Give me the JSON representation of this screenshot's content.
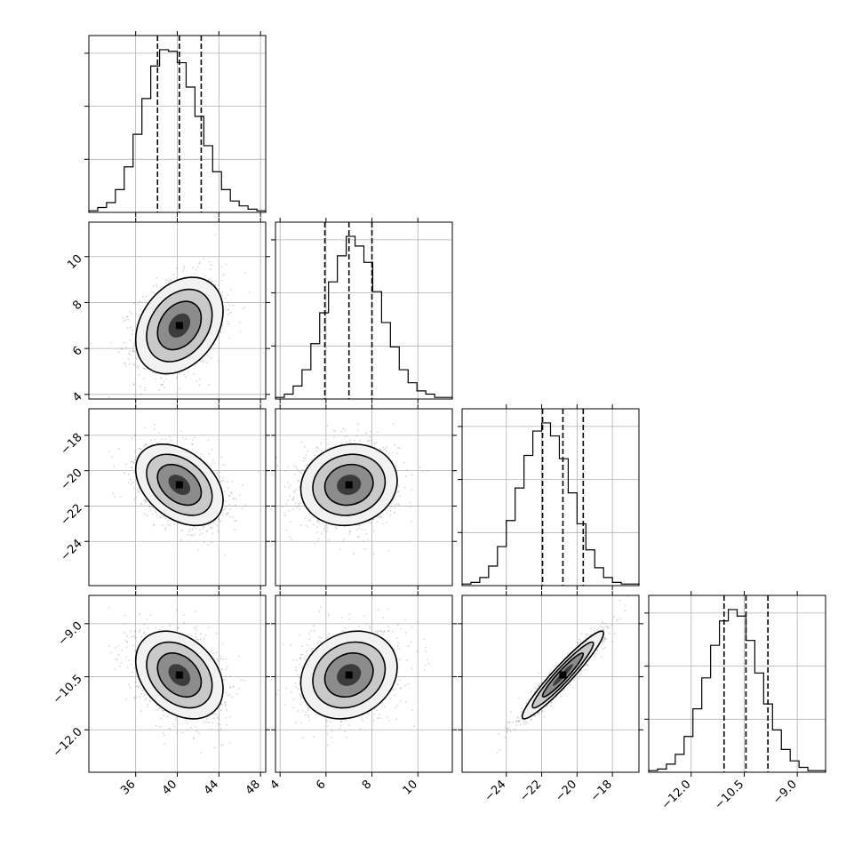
{
  "chart_data": {
    "type": "corner",
    "grid": true,
    "parameters": [
      {
        "mean": 40.2,
        "sd": 2.1,
        "range": [
          31.5,
          48.5
        ],
        "quantiles": [
          38.1,
          40.2,
          42.3
        ],
        "ticks": [
          36,
          40,
          44,
          48
        ],
        "tick_labels": [
          "36",
          "40",
          "44",
          "48"
        ]
      },
      {
        "mean": 7.0,
        "sd": 1.05,
        "range": [
          3.8,
          11.5
        ],
        "quantiles": [
          5.95,
          7.0,
          8.0
        ],
        "ticks": [
          4,
          6,
          8,
          10
        ],
        "tick_labels": [
          "4",
          "6",
          "8",
          "10"
        ]
      },
      {
        "mean": -20.8,
        "sd": 1.15,
        "range": [
          -26.5,
          -16.5
        ],
        "quantiles": [
          -21.95,
          -20.8,
          -19.65
        ],
        "ticks": [
          -24,
          -22,
          -20,
          -18
        ],
        "tick_labels": [
          "−24",
          "−22",
          "−20",
          "−18"
        ]
      },
      {
        "mean": -10.45,
        "sd": 0.62,
        "range": [
          -13.2,
          -8.2
        ],
        "quantiles": [
          -11.07,
          -10.45,
          -9.83
        ],
        "ticks": [
          -12.0,
          -10.5,
          -9.0
        ],
        "tick_labels": [
          "−12.0",
          "−10.5",
          "−9.0"
        ]
      }
    ],
    "histograms": [
      [
        1,
        3,
        6,
        14,
        28,
        48,
        70,
        90,
        100,
        99,
        92,
        77,
        59,
        41,
        25,
        14,
        7,
        4,
        2,
        1
      ],
      [
        1,
        3,
        8,
        18,
        34,
        53,
        72,
        88,
        100,
        94,
        84,
        66,
        47,
        32,
        18,
        10,
        5,
        3,
        1,
        1
      ],
      [
        1,
        2,
        5,
        12,
        24,
        40,
        60,
        80,
        95,
        100,
        92,
        78,
        57,
        38,
        22,
        11,
        5,
        2,
        1,
        1
      ],
      [
        1,
        2,
        5,
        11,
        22,
        39,
        58,
        78,
        93,
        100,
        96,
        81,
        61,
        42,
        26,
        14,
        7,
        3,
        1,
        1
      ]
    ],
    "correlations": {
      "1-0": 0.3,
      "2-0": -0.38,
      "2-1": 0.1,
      "3-0": -0.32,
      "3-1": 0.18,
      "3-2": 0.95
    },
    "contour_levels_sigma": [
      0.5,
      1.0,
      1.5,
      2.0
    ]
  }
}
